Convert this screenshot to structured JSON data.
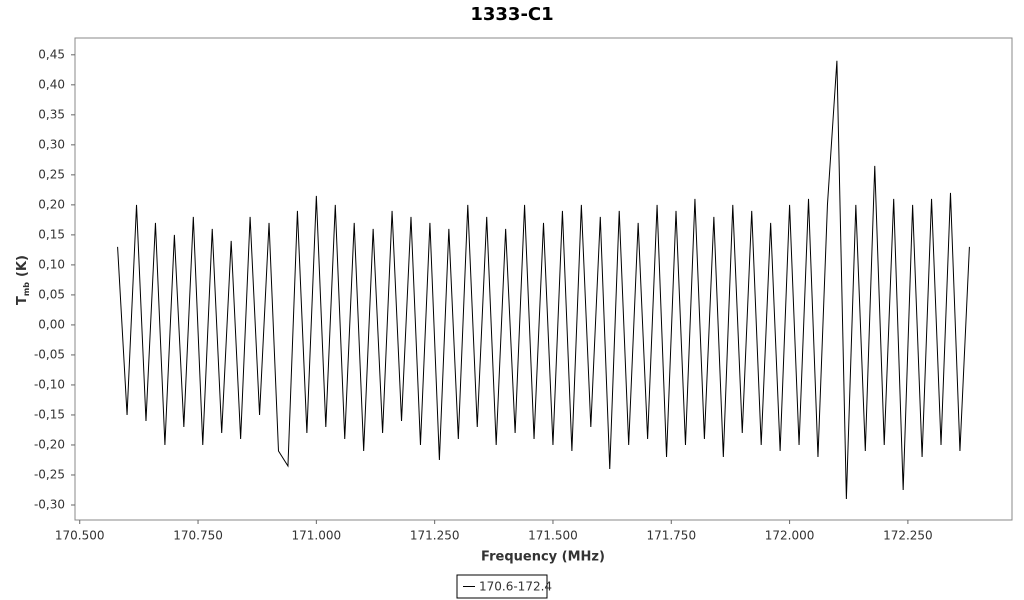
{
  "chart_data": {
    "type": "line",
    "title": "1333-C1",
    "xlabel": "Frequency (MHz)",
    "ylabel": {
      "main": "T",
      "sub": "mb",
      "rest": "(K)"
    },
    "x": [
      170.58,
      170.6,
      170.62,
      170.64,
      170.66,
      170.68,
      170.7,
      170.72,
      170.74,
      170.76,
      170.78,
      170.8,
      170.82,
      170.84,
      170.86,
      170.88,
      170.9,
      170.92,
      170.94,
      170.96,
      170.98,
      171.0,
      171.02,
      171.04,
      171.06,
      171.08,
      171.1,
      171.12,
      171.14,
      171.16,
      171.18,
      171.2,
      171.22,
      171.24,
      171.26,
      171.28,
      171.3,
      171.32,
      171.34,
      171.36,
      171.38,
      171.4,
      171.42,
      171.44,
      171.46,
      171.48,
      171.5,
      171.52,
      171.54,
      171.56,
      171.58,
      171.6,
      171.62,
      171.64,
      171.66,
      171.68,
      171.7,
      171.72,
      171.74,
      171.76,
      171.78,
      171.8,
      171.82,
      171.84,
      171.86,
      171.88,
      171.9,
      171.92,
      171.94,
      171.96,
      171.98,
      172.0,
      172.02,
      172.04,
      172.06,
      172.08,
      172.1,
      172.12,
      172.14,
      172.16,
      172.18,
      172.2,
      172.22,
      172.24,
      172.26,
      172.28,
      172.3,
      172.32,
      172.34,
      172.36,
      172.38
    ],
    "series": [
      {
        "name": "170.6-172.4",
        "color": "#000000",
        "values": [
          0.13,
          -0.15,
          0.2,
          -0.16,
          0.17,
          -0.2,
          0.15,
          -0.17,
          0.18,
          -0.2,
          0.16,
          -0.18,
          0.14,
          -0.19,
          0.18,
          -0.15,
          0.17,
          -0.21,
          -0.235,
          0.19,
          -0.18,
          0.215,
          -0.17,
          0.2,
          -0.19,
          0.17,
          -0.21,
          0.16,
          -0.18,
          0.19,
          -0.16,
          0.18,
          -0.2,
          0.17,
          -0.225,
          0.16,
          -0.19,
          0.2,
          -0.17,
          0.18,
          -0.2,
          0.16,
          -0.18,
          0.2,
          -0.19,
          0.17,
          -0.2,
          0.19,
          -0.21,
          0.2,
          -0.17,
          0.18,
          -0.24,
          0.19,
          -0.2,
          0.17,
          -0.19,
          0.2,
          -0.22,
          0.19,
          -0.2,
          0.21,
          -0.19,
          0.18,
          -0.22,
          0.2,
          -0.18,
          0.19,
          -0.2,
          0.17,
          -0.21,
          0.2,
          -0.2,
          0.21,
          -0.22,
          0.2,
          0.44,
          -0.29,
          0.2,
          -0.21,
          0.265,
          -0.2,
          0.21,
          -0.275,
          0.2,
          -0.22,
          0.21,
          -0.2,
          0.22,
          -0.21,
          0.13
        ]
      }
    ],
    "xlim": [
      170.49,
      172.47
    ],
    "ylim": [
      -0.325,
      0.478
    ],
    "xticks": [
      {
        "value": 170.5,
        "label": "170.500"
      },
      {
        "value": 170.75,
        "label": "170.750"
      },
      {
        "value": 171.0,
        "label": "171.000"
      },
      {
        "value": 171.25,
        "label": "171.250"
      },
      {
        "value": 171.5,
        "label": "171.500"
      },
      {
        "value": 171.75,
        "label": "171.750"
      },
      {
        "value": 172.0,
        "label": "172.000"
      },
      {
        "value": 172.25,
        "label": "172.250"
      }
    ],
    "yticks": [
      {
        "value": 0.45,
        "label": "0,45"
      },
      {
        "value": 0.4,
        "label": "0,40"
      },
      {
        "value": 0.35,
        "label": "0,35"
      },
      {
        "value": 0.3,
        "label": "0,30"
      },
      {
        "value": 0.25,
        "label": "0,25"
      },
      {
        "value": 0.2,
        "label": "0,20"
      },
      {
        "value": 0.15,
        "label": "0,15"
      },
      {
        "value": 0.1,
        "label": "0,10"
      },
      {
        "value": 0.05,
        "label": "0,05"
      },
      {
        "value": 0,
        "label": "0,00"
      },
      {
        "value": -0.05,
        "label": "-0,05"
      },
      {
        "value": -0.1,
        "label": "-0,10"
      },
      {
        "value": -0.15,
        "label": "-0,15"
      },
      {
        "value": -0.2,
        "label": "-0,20"
      },
      {
        "value": -0.25,
        "label": "-0,25"
      },
      {
        "value": -0.3,
        "label": "-0,30"
      }
    ],
    "grid": false,
    "legend": "bottom"
  }
}
